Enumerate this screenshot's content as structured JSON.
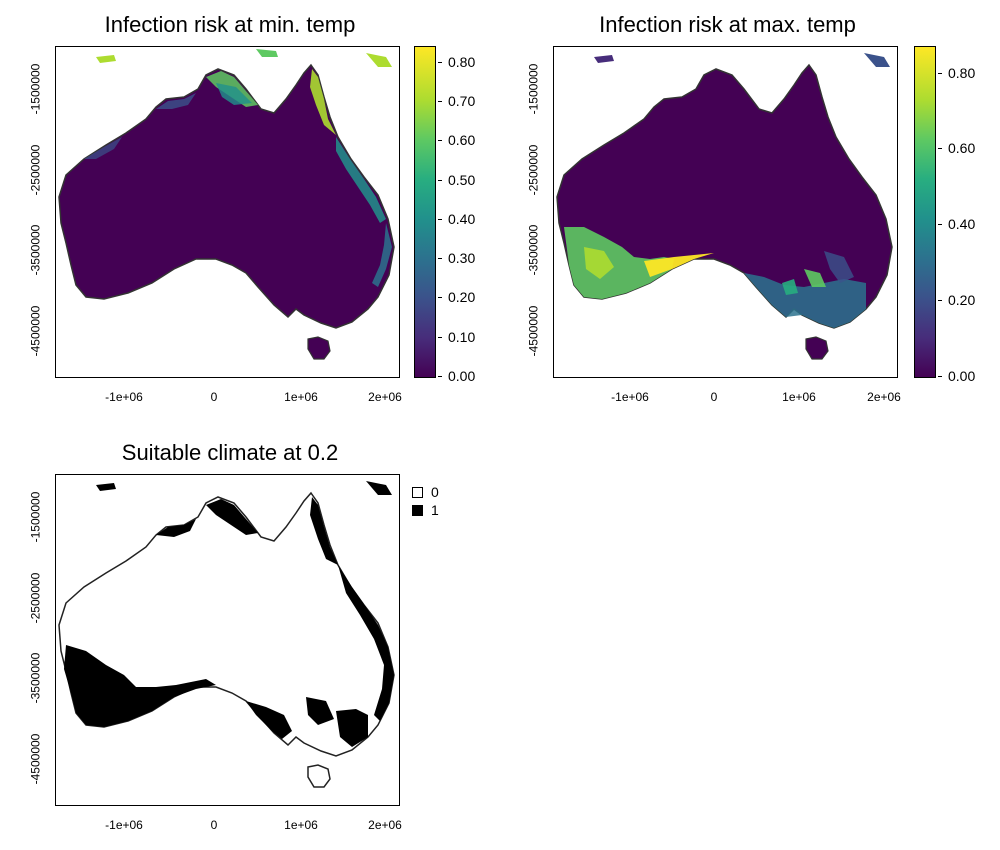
{
  "panels": [
    {
      "id": "min",
      "title": "Infection risk at min. temp",
      "xticks": [
        "-1e+06",
        "0",
        "1e+06",
        "2e+06"
      ],
      "yticks": [
        "-1500000",
        "-2500000",
        "-3500000",
        "-4500000"
      ],
      "colorbar": {
        "labels": [
          "0.80",
          "0.70",
          "0.60",
          "0.50",
          "0.40",
          "0.30",
          "0.20",
          "0.10",
          "0.00"
        ],
        "max": 0.84
      }
    },
    {
      "id": "max",
      "title": "Infection risk at max. temp",
      "xticks": [
        "-1e+06",
        "0",
        "1e+06",
        "2e+06"
      ],
      "yticks": [
        "-1500000",
        "-2500000",
        "-3500000",
        "-4500000"
      ],
      "colorbar": {
        "labels": [
          "0.80",
          "0.60",
          "0.40",
          "0.20",
          "0.00"
        ],
        "max": 0.87
      }
    },
    {
      "id": "suit",
      "title": "Suitable climate at 0.2",
      "xticks": [
        "-1e+06",
        "0",
        "1e+06",
        "2e+06"
      ],
      "yticks": [
        "-1500000",
        "-2500000",
        "-3500000",
        "-4500000"
      ],
      "legend": [
        {
          "label": "0",
          "color": "#ffffff"
        },
        {
          "label": "1",
          "color": "#000000"
        }
      ]
    }
  ],
  "colors": {
    "background_land": "#440154",
    "viridis": [
      "#440154",
      "#472d7b",
      "#3b528b",
      "#2c728e",
      "#21918c",
      "#28ae80",
      "#5ec962",
      "#addc30",
      "#fde725"
    ]
  }
}
